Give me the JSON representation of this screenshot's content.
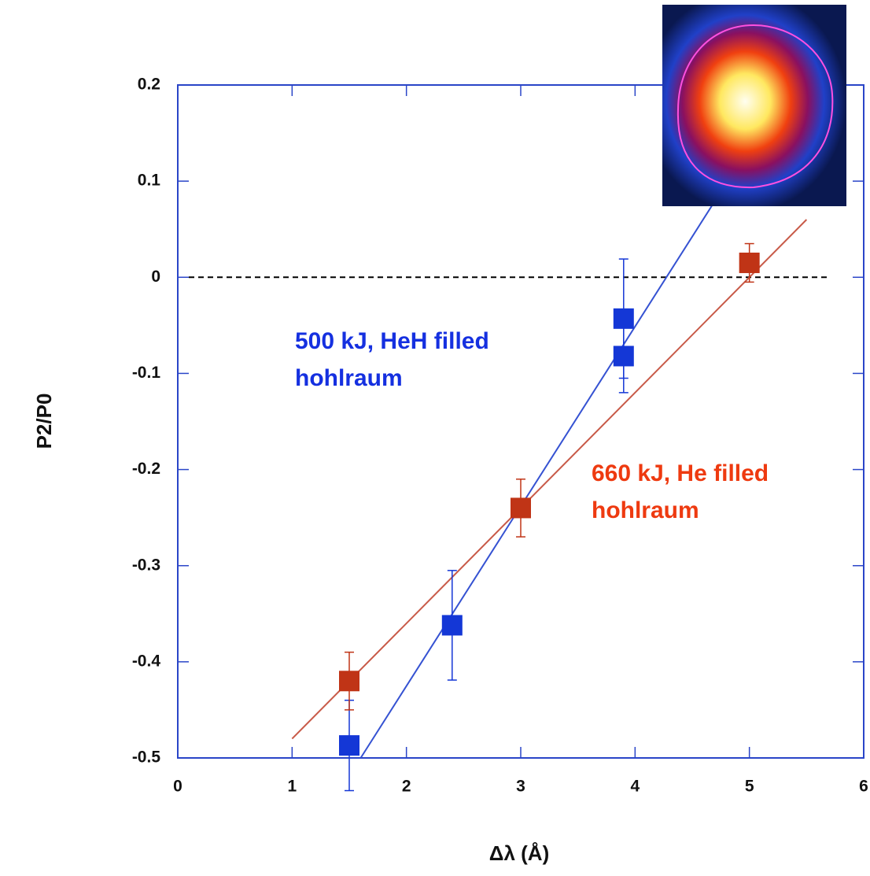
{
  "chart_data": {
    "type": "scatter",
    "x_label": "Δλ (Å)",
    "y_label": "P2/P0",
    "xlim": [
      0,
      6
    ],
    "xticks": [
      0,
      1,
      2,
      3,
      4,
      5,
      6
    ],
    "ylim": [
      -0.5,
      0.2
    ],
    "yticks": [
      0.2,
      0.1,
      0,
      -0.1,
      -0.2,
      -0.3,
      -0.4,
      -0.5
    ],
    "reference_line": 0,
    "series": [
      {
        "color": "#1437d6",
        "line_color": "#3552d2",
        "x": [
          1.5,
          2.4,
          3.9,
          3.9
        ],
        "values": [
          -0.487,
          -0.362,
          -0.043,
          -0.082
        ],
        "errors": [
          0.047,
          0.057,
          0.062,
          0.038
        ],
        "fit_x": [
          1.6,
          4.75
        ],
        "fit_y": [
          -0.5,
          0.089
        ]
      },
      {
        "color": "#c03416",
        "line_color": "#c85a48",
        "x": [
          1.5,
          3,
          5
        ],
        "values": [
          -0.42,
          -0.24,
          0.015
        ],
        "errors": [
          0.03,
          0.03,
          0.02
        ],
        "fit_x": [
          1,
          5.5
        ],
        "fit_y": [
          -0.48,
          0.06
        ]
      }
    ],
    "annotations": [
      {
        "lines": [
          "500 kJ, HeH filled",
          "hohlraum"
        ],
        "color": "#1530e0"
      },
      {
        "lines": [
          "660 kJ, He filled",
          "hohlraum"
        ],
        "color": "#ee3a10"
      }
    ]
  }
}
